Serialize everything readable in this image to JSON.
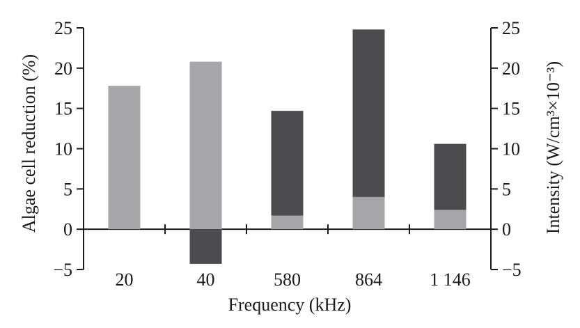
{
  "chart_data": {
    "type": "bar",
    "categories": [
      "20",
      "40",
      "580",
      "864",
      "1 146"
    ],
    "series": [
      {
        "values": [
          17.8,
          20.8,
          1.7,
          4.0,
          2.4
        ],
        "color": "#a6a6a8"
      },
      {
        "values": [
          0,
          -4.3,
          13.0,
          20.8,
          8.2
        ],
        "color": "#4c4c4e"
      }
    ],
    "xlabel": "Frequency (kHz)",
    "ylabel_left": "Algae cell reduction (%)",
    "ylabel_right": "Intensity  (W/cm³×10⁻³)",
    "ylim": [
      -5,
      25
    ],
    "yticks": [
      "−5",
      "0",
      "5",
      "10",
      "15",
      "20",
      "25"
    ],
    "ytick_values": [
      -5,
      0,
      5,
      10,
      15,
      20,
      25
    ],
    "grid": false,
    "axis_color": "#1a1a1a"
  }
}
